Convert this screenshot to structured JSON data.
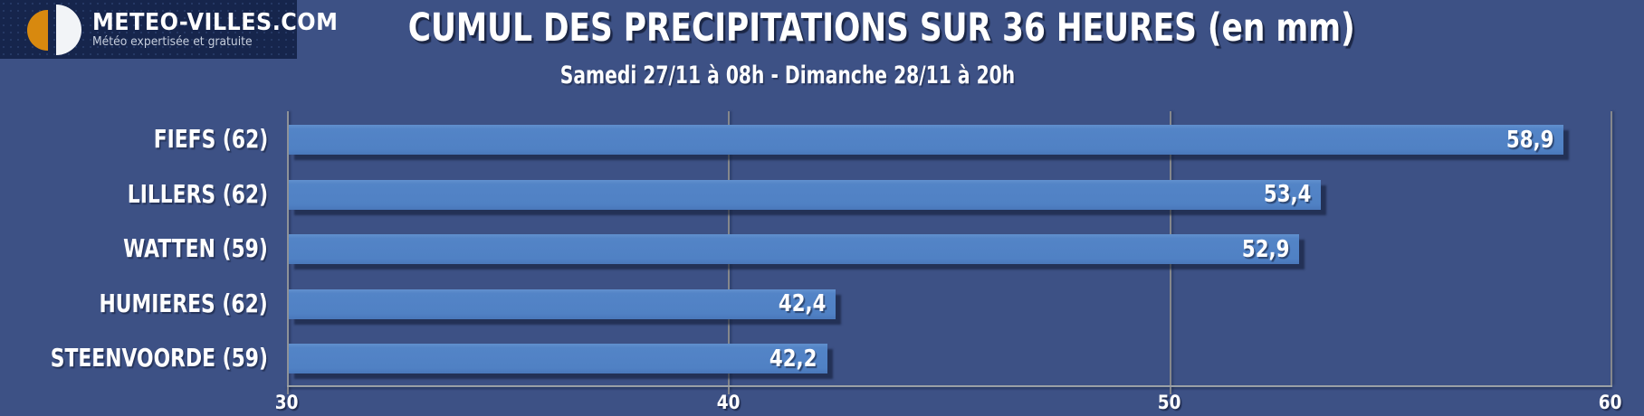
{
  "logo": {
    "title": "METEO-VILLES.COM",
    "tagline": "Météo expertisée et gratuite"
  },
  "header": {
    "title": "CUMUL DES PRECIPITATIONS SUR 36 HEURES (en mm)",
    "subtitle": "Samedi 27/11 à 08h - Dimanche 28/11 à 20h"
  },
  "chart_data": {
    "type": "bar",
    "orientation": "horizontal",
    "title": "CUMUL DES PRECIPITATIONS SUR 36 HEURES (en mm)",
    "subtitle": "Samedi 27/11 à 08h - Dimanche 28/11 à 20h",
    "unit": "mm",
    "categories": [
      "FIEFS (62)",
      "LILLERS (62)",
      "WATTEN (59)",
      "HUMIERES (62)",
      "STEENVOORDE (59)"
    ],
    "values": [
      58.9,
      53.4,
      52.9,
      42.4,
      42.2
    ],
    "value_labels": [
      "58,9",
      "53,4",
      "52,9",
      "42,4",
      "42,2"
    ],
    "xlim": [
      30,
      60
    ],
    "x_ticks": [
      30,
      40,
      50,
      60
    ],
    "x_tick_labels": [
      "30",
      "40",
      "50",
      "60"
    ],
    "grid": "vertical-gridlines-at-ticks",
    "legend": "none",
    "bar_color": "#5081c4",
    "background_color": "#3d5185",
    "axis_color": "#9aa0a6",
    "label_color": "#ffffff"
  },
  "colors": {
    "logo_background": "#16254c",
    "logo_orange": "#d8890f",
    "page_background": "#3d5185",
    "bar_blue": "#5081c4",
    "text_white": "#ffffff"
  }
}
